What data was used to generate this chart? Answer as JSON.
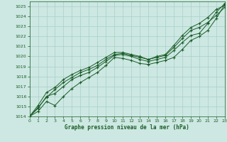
{
  "title": "Graphe pression niveau de la mer (hPa)",
  "background_color": "#cde8e2",
  "grid_color": "#a8cfc7",
  "line_color": "#1a5c28",
  "xlim": [
    0,
    23
  ],
  "ylim": [
    1014,
    1025.5
  ],
  "xticks": [
    0,
    1,
    2,
    3,
    4,
    5,
    6,
    7,
    8,
    9,
    10,
    11,
    12,
    13,
    14,
    15,
    16,
    17,
    18,
    19,
    20,
    21,
    22,
    23
  ],
  "yticks": [
    1014,
    1015,
    1016,
    1017,
    1018,
    1019,
    1020,
    1021,
    1022,
    1023,
    1024,
    1025
  ],
  "series": [
    [
      1014.0,
      1014.5,
      1015.5,
      1015.1,
      1016.0,
      1016.8,
      1017.4,
      1017.9,
      1018.4,
      1019.1,
      1019.9,
      1019.8,
      1019.6,
      1019.3,
      1019.2,
      1019.4,
      1019.6,
      1019.9,
      1020.7,
      1021.6,
      1022.0,
      1022.6,
      1023.8,
      1025.2
    ],
    [
      1014.0,
      1014.8,
      1016.0,
      1016.3,
      1017.0,
      1017.7,
      1018.1,
      1018.4,
      1018.9,
      1019.5,
      1020.1,
      1020.2,
      1020.0,
      1019.7,
      1019.5,
      1019.7,
      1019.9,
      1020.6,
      1021.4,
      1022.1,
      1022.3,
      1023.3,
      1024.4,
      1025.3
    ],
    [
      1014.0,
      1014.9,
      1015.9,
      1016.7,
      1017.4,
      1017.9,
      1018.4,
      1018.7,
      1019.1,
      1019.7,
      1020.2,
      1020.3,
      1020.1,
      1019.9,
      1019.7,
      1019.9,
      1020.1,
      1020.9,
      1021.8,
      1022.6,
      1022.9,
      1023.4,
      1024.1,
      1024.9
    ],
    [
      1014.0,
      1015.1,
      1016.4,
      1016.9,
      1017.7,
      1018.2,
      1018.6,
      1018.9,
      1019.4,
      1019.9,
      1020.4,
      1020.4,
      1020.2,
      1020.0,
      1019.7,
      1020.0,
      1020.2,
      1021.1,
      1022.1,
      1022.9,
      1023.3,
      1023.9,
      1024.7,
      1025.1
    ]
  ]
}
